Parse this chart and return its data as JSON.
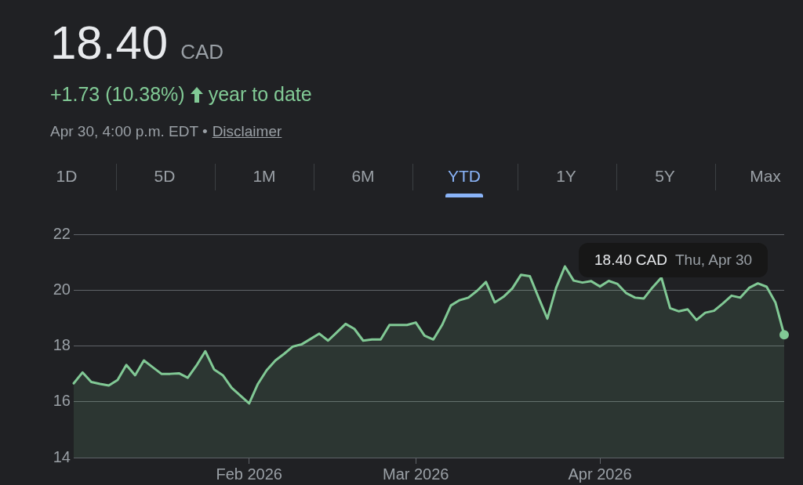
{
  "chart_data": {
    "type": "area",
    "title": "18.40",
    "annotations": [
      "CAD",
      "+1.73 (10.38%)",
      "year to date",
      "Apr 30, 4:00 p.m. EDT •",
      "Disclaimer",
      "1D",
      "5D",
      "1M",
      "6M",
      "YTD",
      "1Y",
      "5Y",
      "Max",
      "18.40 CAD",
      "Thu, Apr 30"
    ],
    "categories": [
      null,
      null,
      null,
      null,
      null,
      null,
      null,
      null,
      null,
      null,
      null,
      null,
      null,
      null,
      null,
      null,
      null,
      null,
      null,
      null,
      "Feb 2026",
      null,
      null,
      null,
      null,
      null,
      null,
      null,
      null,
      null,
      null,
      null,
      null,
      null,
      null,
      null,
      null,
      null,
      null,
      "Mar 2026",
      null,
      null,
      null,
      null,
      null,
      null,
      null,
      null,
      null,
      null,
      null,
      null,
      null,
      null,
      null,
      null,
      null,
      null,
      null,
      null,
      "Apr 2026",
      null,
      null,
      null,
      null,
      null,
      null,
      null,
      null,
      null,
      null,
      null,
      null,
      null,
      null,
      null,
      null,
      null,
      null,
      null,
      null,
      null
    ],
    "series": [
      {
        "color": "#81c995",
        "values": [
          16.66,
          17.05,
          16.71,
          16.64,
          16.58,
          16.78,
          17.32,
          16.95,
          17.48,
          17.24,
          17.0,
          17.0,
          17.02,
          16.86,
          17.3,
          17.81,
          17.16,
          16.95,
          16.5,
          16.22,
          15.94,
          16.64,
          17.13,
          17.48,
          17.72,
          17.98,
          18.06,
          18.25,
          18.44,
          18.19,
          18.49,
          18.79,
          18.61,
          18.19,
          18.23,
          18.23,
          18.75,
          18.75,
          18.75,
          18.84,
          18.37,
          18.23,
          18.75,
          19.45,
          19.64,
          19.73,
          19.98,
          20.29,
          19.56,
          19.76,
          20.06,
          20.55,
          20.5,
          19.73,
          18.98,
          20.08,
          20.85,
          20.34,
          20.27,
          20.32,
          20.13,
          20.33,
          20.22,
          19.89,
          19.73,
          19.7,
          20.1,
          20.45,
          19.35,
          19.24,
          19.31,
          18.93,
          19.19,
          19.26,
          19.52,
          19.8,
          19.73,
          20.08,
          20.24,
          20.12,
          19.56,
          18.4
        ]
      }
    ],
    "ylim": [
      14,
      22
    ],
    "yticks": [
      14,
      16,
      18,
      20,
      22
    ],
    "grid": "y",
    "legend": false,
    "marker": "none",
    "line_style": "solid"
  }
}
